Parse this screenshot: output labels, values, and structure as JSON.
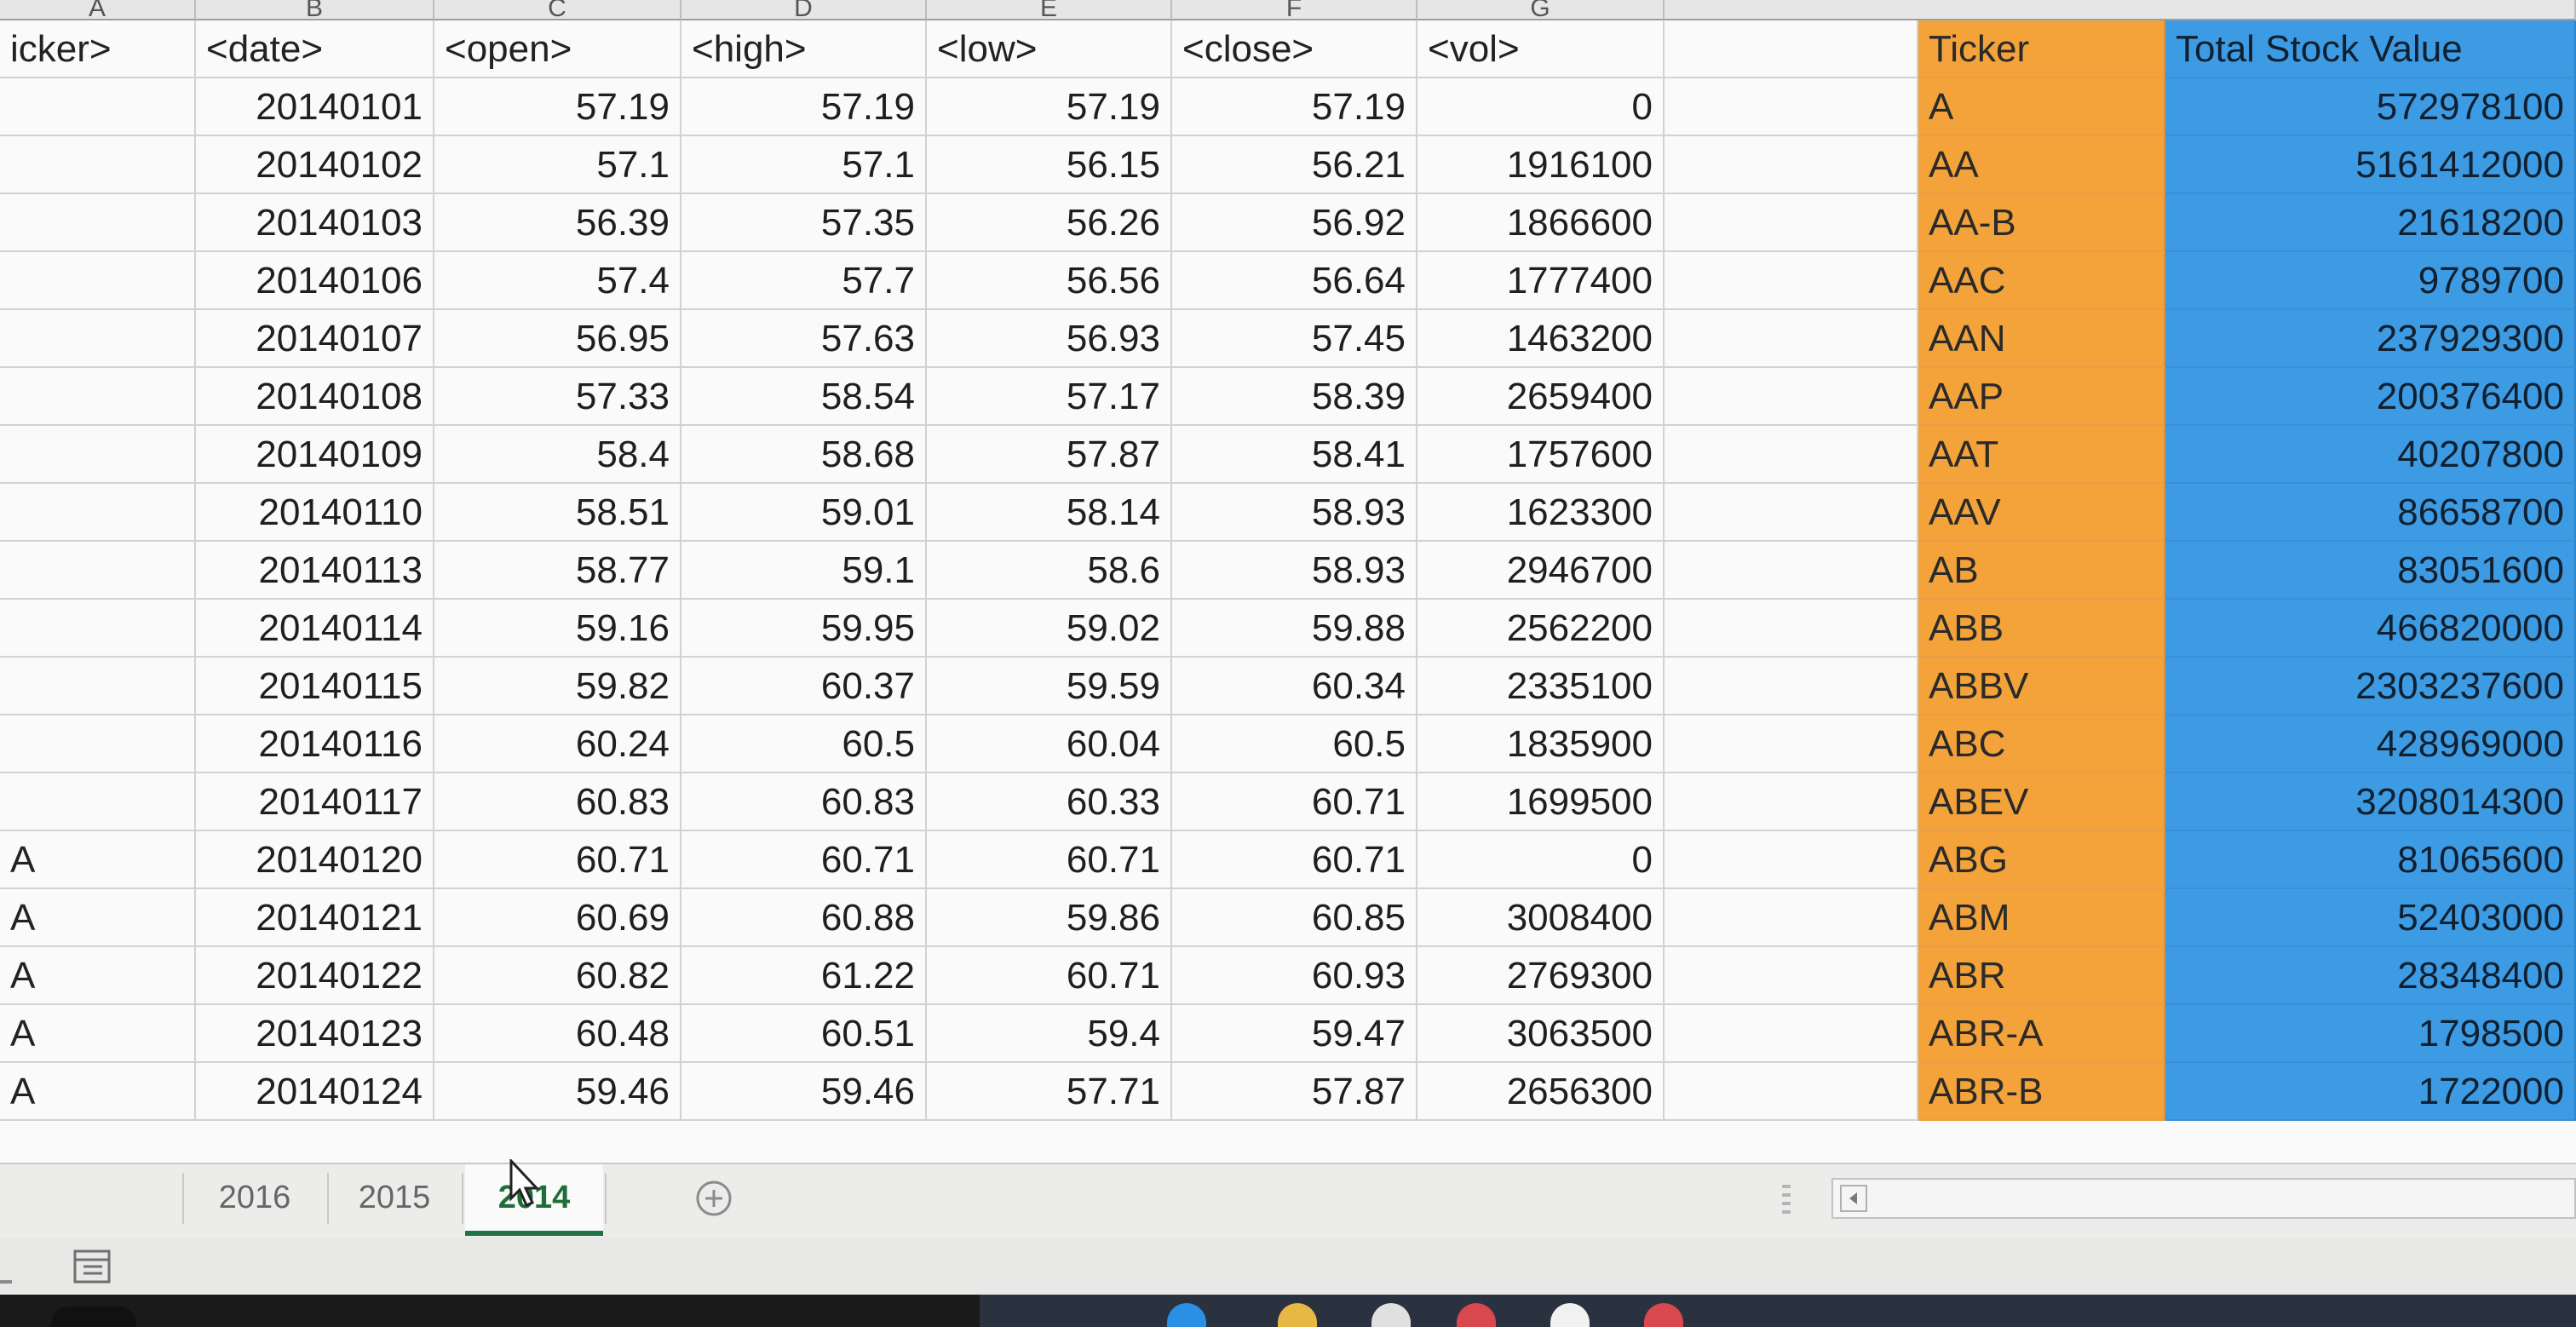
{
  "column_letters": [
    "A",
    "B",
    "C",
    "D",
    "E",
    "F",
    "G"
  ],
  "table": {
    "headers": [
      "icker>",
      "<date>",
      "<open>",
      "<high>",
      "<low>",
      "<close>",
      "<vol>"
    ],
    "rows": [
      [
        "",
        "20140101",
        "57.19",
        "57.19",
        "57.19",
        "57.19",
        "0"
      ],
      [
        "",
        "20140102",
        "57.1",
        "57.1",
        "56.15",
        "56.21",
        "1916100"
      ],
      [
        "",
        "20140103",
        "56.39",
        "57.35",
        "56.26",
        "56.92",
        "1866600"
      ],
      [
        "",
        "20140106",
        "57.4",
        "57.7",
        "56.56",
        "56.64",
        "1777400"
      ],
      [
        "",
        "20140107",
        "56.95",
        "57.63",
        "56.93",
        "57.45",
        "1463200"
      ],
      [
        "",
        "20140108",
        "57.33",
        "58.54",
        "57.17",
        "58.39",
        "2659400"
      ],
      [
        "",
        "20140109",
        "58.4",
        "58.68",
        "57.87",
        "58.41",
        "1757600"
      ],
      [
        "",
        "20140110",
        "58.51",
        "59.01",
        "58.14",
        "58.93",
        "1623300"
      ],
      [
        "",
        "20140113",
        "58.77",
        "59.1",
        "58.6",
        "58.93",
        "2946700"
      ],
      [
        "",
        "20140114",
        "59.16",
        "59.95",
        "59.02",
        "59.88",
        "2562200"
      ],
      [
        "",
        "20140115",
        "59.82",
        "60.37",
        "59.59",
        "60.34",
        "2335100"
      ],
      [
        "",
        "20140116",
        "60.24",
        "60.5",
        "60.04",
        "60.5",
        "1835900"
      ],
      [
        "",
        "20140117",
        "60.83",
        "60.83",
        "60.33",
        "60.71",
        "1699500"
      ],
      [
        "A",
        "20140120",
        "60.71",
        "60.71",
        "60.71",
        "60.71",
        "0"
      ],
      [
        "A",
        "20140121",
        "60.69",
        "60.88",
        "59.86",
        "60.85",
        "3008400"
      ],
      [
        "A",
        "20140122",
        "60.82",
        "61.22",
        "60.71",
        "60.93",
        "2769300"
      ],
      [
        "A",
        "20140123",
        "60.48",
        "60.51",
        "59.4",
        "59.47",
        "3063500"
      ],
      [
        "A",
        "20140124",
        "59.46",
        "59.46",
        "57.71",
        "57.87",
        "2656300"
      ]
    ]
  },
  "summary": {
    "headers": [
      "Ticker",
      "Total Stock Value"
    ],
    "rows": [
      [
        "A",
        "572978100"
      ],
      [
        "AA",
        "5161412000"
      ],
      [
        "AA-B",
        "21618200"
      ],
      [
        "AAC",
        "9789700"
      ],
      [
        "AAN",
        "237929300"
      ],
      [
        "AAP",
        "200376400"
      ],
      [
        "AAT",
        "40207800"
      ],
      [
        "AAV",
        "86658700"
      ],
      [
        "AB",
        "83051600"
      ],
      [
        "ABB",
        "466820000"
      ],
      [
        "ABBV",
        "2303237600"
      ],
      [
        "ABC",
        "428969000"
      ],
      [
        "ABEV",
        "3208014300"
      ],
      [
        "ABG",
        "81065600"
      ],
      [
        "ABM",
        "52403000"
      ],
      [
        "ABR",
        "28348400"
      ],
      [
        "ABR-A",
        "1798500"
      ],
      [
        "ABR-B",
        "1722000"
      ]
    ]
  },
  "sheet_tabs": [
    "2016",
    "2015",
    "2014"
  ],
  "active_tab": "2014",
  "add_sheet_icon": "plus-circle-icon",
  "colors": {
    "ticker_fill": "#f3a33a",
    "total_fill": "#3d9be3",
    "active_tab_accent": "#217346",
    "gridline": "#d2d2d2"
  }
}
